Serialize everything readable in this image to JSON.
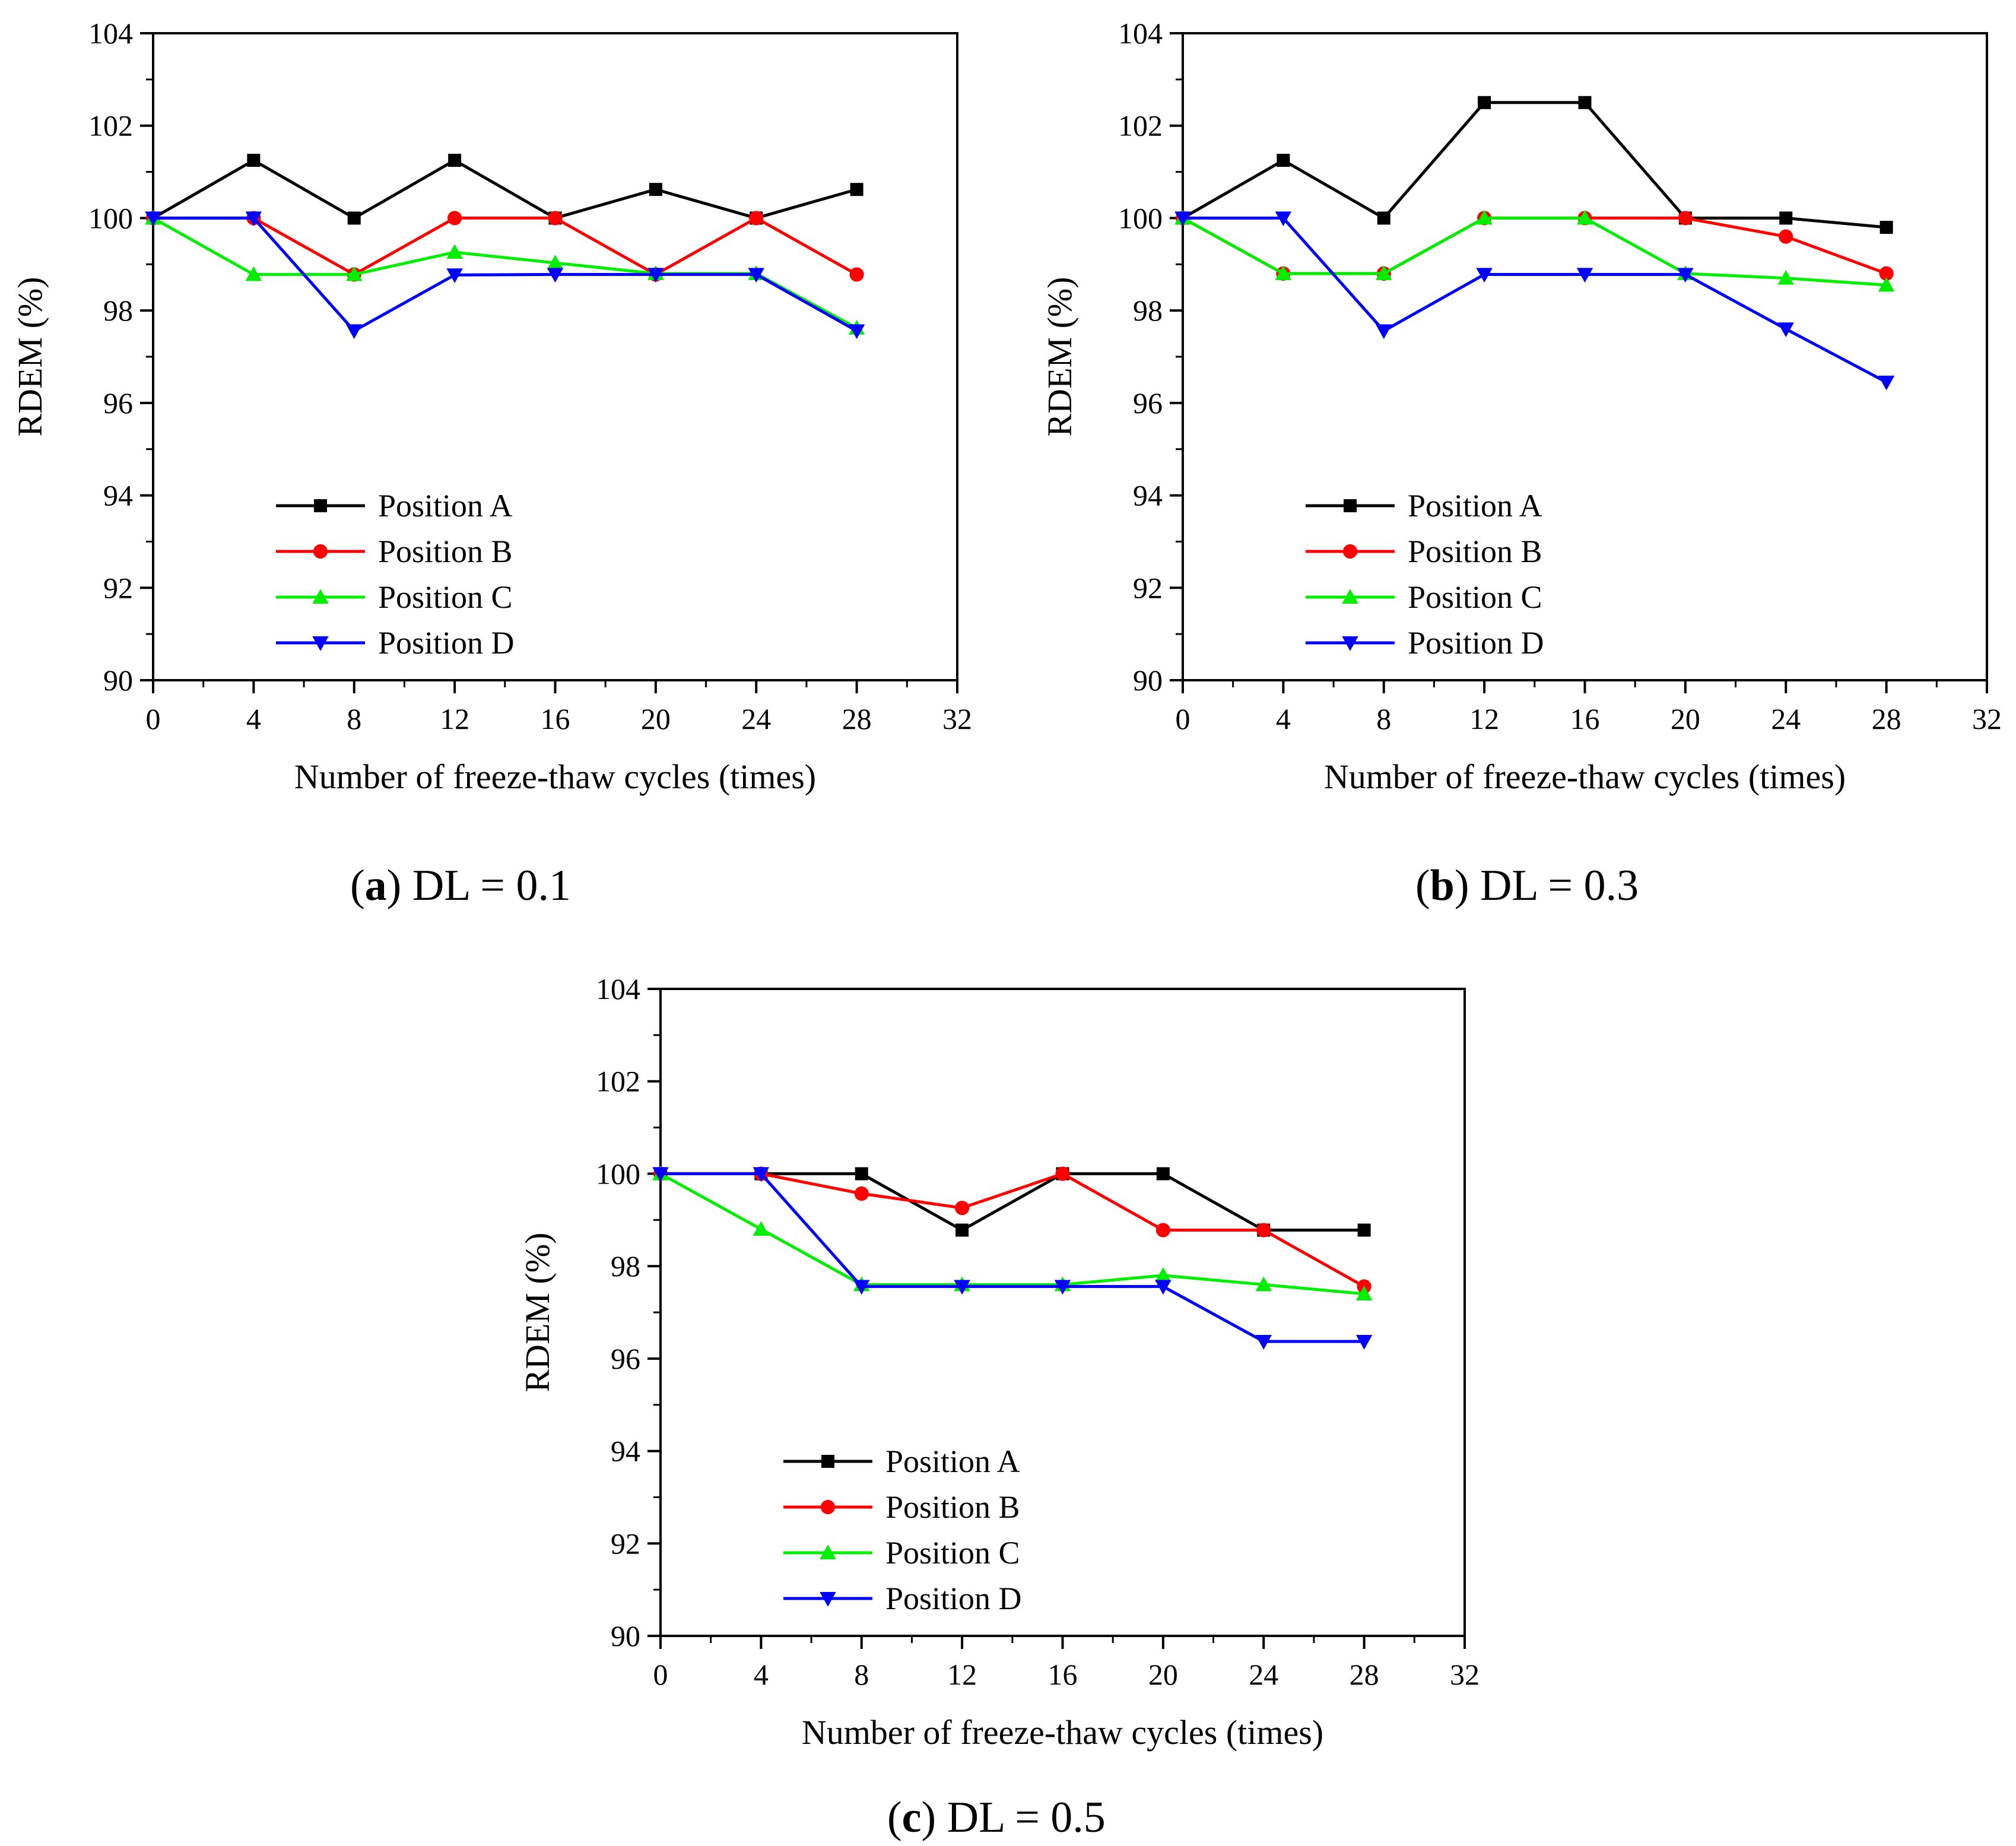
{
  "colors": {
    "Position A": "#000000",
    "Position B": "#ff0000",
    "Position C": "#00ee00",
    "Position D": "#0000ff"
  },
  "markers": {
    "Position A": "square",
    "Position B": "circle",
    "Position C": "triangle-up",
    "Position D": "triangle-down"
  },
  "chart_data": [
    {
      "type": "line",
      "caption": {
        "letter": "a",
        "text": "DL = 0.1",
        "open": "(",
        "close": ")"
      },
      "xlabel": "Number of freeze-thaw cycles (times)",
      "ylabel": "RDEM (%)",
      "xlim": [
        0,
        32
      ],
      "ylim": [
        90,
        104
      ],
      "xticks": [
        0,
        4,
        8,
        12,
        16,
        20,
        24,
        28,
        32
      ],
      "yticks": [
        90,
        92,
        94,
        96,
        98,
        100,
        102,
        104
      ],
      "legend": "lower-center",
      "x": [
        0,
        4,
        8,
        12,
        16,
        20,
        24,
        28
      ],
      "series": [
        {
          "name": "Position A",
          "values": [
            100,
            101.25,
            100,
            101.25,
            100,
            100.62,
            100,
            100.62
          ]
        },
        {
          "name": "Position B",
          "values": [
            100,
            100,
            98.78,
            100,
            100,
            98.78,
            100,
            98.78
          ]
        },
        {
          "name": "Position C",
          "values": [
            100,
            98.78,
            98.78,
            99.26,
            99.03,
            98.8,
            98.8,
            97.62
          ]
        },
        {
          "name": "Position D",
          "values": [
            100,
            100,
            97.56,
            98.77,
            98.78,
            98.78,
            98.78,
            97.56
          ]
        }
      ]
    },
    {
      "type": "line",
      "caption": {
        "letter": "b",
        "text": "DL = 0.3",
        "open": "(",
        "close": ")"
      },
      "xlabel": "Number of freeze-thaw cycles (times)",
      "ylabel": "RDEM (%)",
      "xlim": [
        0,
        32
      ],
      "ylim": [
        90,
        104
      ],
      "xticks": [
        0,
        4,
        8,
        12,
        16,
        20,
        24,
        28,
        32
      ],
      "yticks": [
        90,
        92,
        94,
        96,
        98,
        100,
        102,
        104
      ],
      "legend": "lower-center",
      "x": [
        0,
        4,
        8,
        12,
        16,
        20,
        24,
        28
      ],
      "series": [
        {
          "name": "Position A",
          "values": [
            100,
            101.25,
            100,
            102.5,
            102.5,
            100,
            100,
            99.8
          ]
        },
        {
          "name": "Position B",
          "values": [
            100,
            98.8,
            98.8,
            100,
            100,
            100,
            99.6,
            98.8
          ]
        },
        {
          "name": "Position C",
          "values": [
            100,
            98.8,
            98.8,
            100,
            100,
            98.8,
            98.7,
            98.55
          ]
        },
        {
          "name": "Position D",
          "values": [
            100,
            100,
            97.56,
            98.78,
            98.78,
            98.78,
            97.6,
            96.45
          ]
        }
      ]
    },
    {
      "type": "line",
      "caption": {
        "letter": "c",
        "text": "DL = 0.5",
        "open": "(",
        "close": ")"
      },
      "xlabel": "Number of freeze-thaw cycles (times)",
      "ylabel": "RDEM (%)",
      "xlim": [
        0,
        32
      ],
      "ylim": [
        90,
        104
      ],
      "xticks": [
        0,
        4,
        8,
        12,
        16,
        20,
        24,
        28,
        32
      ],
      "yticks": [
        90,
        92,
        94,
        96,
        98,
        100,
        102,
        104
      ],
      "legend": "lower-center",
      "x": [
        0,
        4,
        8,
        12,
        16,
        20,
        24,
        28
      ],
      "series": [
        {
          "name": "Position A",
          "values": [
            100,
            100,
            100,
            98.78,
            100,
            100,
            98.78,
            98.78
          ]
        },
        {
          "name": "Position B",
          "values": [
            100,
            100,
            99.57,
            99.26,
            100,
            98.78,
            98.78,
            97.56
          ]
        },
        {
          "name": "Position C",
          "values": [
            100,
            98.8,
            97.6,
            97.6,
            97.6,
            97.8,
            97.6,
            97.4
          ]
        },
        {
          "name": "Position D",
          "values": [
            100,
            100,
            97.56,
            97.56,
            97.56,
            97.56,
            96.37,
            96.37
          ]
        }
      ]
    }
  ]
}
